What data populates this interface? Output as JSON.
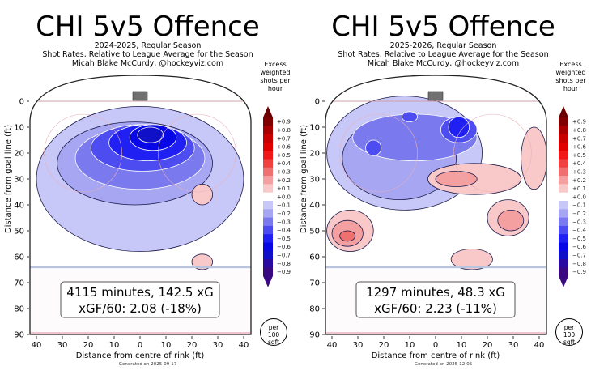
{
  "chart_data": [
    {
      "type": "heatmap",
      "title": "CHI 5v5 Offence",
      "subtitle_lines": [
        "2024-2025, Regular Season",
        "Shot Rates, Relative to League Average for the Season",
        "Micah Blake McCurdy, @hockeyviz.com"
      ],
      "xlabel": "Distance from centre of rink (ft)",
      "ylabel": "Distance from goal line (ft)",
      "x_ticks": [
        "40",
        "30",
        "20",
        "10",
        "0",
        "10",
        "20",
        "30",
        "40"
      ],
      "y_ticks": [
        "0",
        "10",
        "20",
        "30",
        "40",
        "50",
        "60",
        "70",
        "80",
        "90"
      ],
      "xlim": [
        -42,
        42
      ],
      "ylim": [
        90,
        -10
      ],
      "colorbar": {
        "title": "Excess weighted shots per hour",
        "ticks": [
          "+0.9",
          "+0.8",
          "+0.7",
          "+0.6",
          "+0.5",
          "+0.4",
          "+0.3",
          "+0.2",
          "+0.1",
          "+0.0",
          "−0.1",
          "−0.2",
          "−0.3",
          "−0.4",
          "−0.5",
          "−0.6",
          "−0.7",
          "−0.8",
          "−0.9"
        ],
        "unit_badge": [
          "per",
          "100",
          "sqft"
        ]
      },
      "summary_lines": [
        "4115 minutes, 142.5 xG",
        "xGF/60: 2.08 (-18%)"
      ],
      "footer": "Generated on 2025-09-17",
      "contour_regions": [
        {
          "level": -0.1,
          "cx": 0,
          "cy": 30,
          "rx": 40,
          "ry": 28
        },
        {
          "level": -0.2,
          "cx": -2,
          "cy": 24,
          "rx": 30,
          "ry": 16
        },
        {
          "level": -0.3,
          "cx": 0,
          "cy": 22,
          "rx": 25,
          "ry": 12
        },
        {
          "level": -0.4,
          "cx": 1,
          "cy": 18,
          "rx": 20,
          "ry": 9
        },
        {
          "level": -0.5,
          "cx": 3,
          "cy": 16,
          "rx": 15,
          "ry": 7
        },
        {
          "level": -0.6,
          "cx": 5,
          "cy": 14,
          "rx": 9,
          "ry": 5
        },
        {
          "level": -0.7,
          "cx": 4,
          "cy": 13,
          "rx": 5,
          "ry": 3
        },
        {
          "level": 0.1,
          "cx": 24,
          "cy": 36,
          "rx": 4,
          "ry": 4
        },
        {
          "level": 0.1,
          "cx": 24,
          "cy": 62,
          "rx": 4,
          "ry": 3
        }
      ]
    },
    {
      "type": "heatmap",
      "title": "CHI 5v5 Offence",
      "subtitle_lines": [
        "2025-2026, Regular Season",
        "Shot Rates, Relative to League Average for the Season",
        "Micah Blake McCurdy, @hockeyviz.com"
      ],
      "xlabel": "Distance from centre of rink (ft)",
      "ylabel": "Distance from goal line (ft)",
      "x_ticks": [
        "40",
        "30",
        "20",
        "10",
        "0",
        "10",
        "20",
        "30",
        "40"
      ],
      "y_ticks": [
        "0",
        "10",
        "20",
        "30",
        "40",
        "50",
        "60",
        "70",
        "80",
        "90"
      ],
      "xlim": [
        -42,
        42
      ],
      "ylim": [
        90,
        -10
      ],
      "colorbar": {
        "title": "Excess weighted shots per hour",
        "ticks": [
          "+0.9",
          "+0.8",
          "+0.7",
          "+0.6",
          "+0.5",
          "+0.4",
          "+0.3",
          "+0.2",
          "+0.1",
          "+0.0",
          "−0.1",
          "−0.2",
          "−0.3",
          "−0.4",
          "−0.5",
          "−0.6",
          "−0.7",
          "−0.8",
          "−0.9"
        ],
        "unit_badge": [
          "per",
          "100",
          "sqft"
        ]
      },
      "summary_lines": [
        "1297 minutes, 48.3 xG",
        "xGF/60: 2.23 (-11%)"
      ],
      "footer": "Generated on 2025-12-05",
      "contour_regions": [
        {
          "level": -0.1,
          "cx": -12,
          "cy": 20,
          "rx": 30,
          "ry": 22
        },
        {
          "level": -0.2,
          "cx": -14,
          "cy": 22,
          "rx": 22,
          "ry": 16
        },
        {
          "level": -0.3,
          "cx": -8,
          "cy": 14,
          "rx": 24,
          "ry": 9
        },
        {
          "level": -0.4,
          "cx": 9,
          "cy": 11,
          "rx": 7,
          "ry": 5
        },
        {
          "level": -0.5,
          "cx": 9,
          "cy": 10,
          "rx": 4,
          "ry": 4
        },
        {
          "level": -0.4,
          "cx": -24,
          "cy": 18,
          "rx": 3,
          "ry": 3
        },
        {
          "level": -0.4,
          "cx": -10,
          "cy": 6,
          "rx": 3,
          "ry": 2
        },
        {
          "level": 0.1,
          "cx": 15,
          "cy": 30,
          "rx": 18,
          "ry": 6
        },
        {
          "level": 0.2,
          "cx": 8,
          "cy": 30,
          "rx": 8,
          "ry": 3
        },
        {
          "level": 0.1,
          "cx": -33,
          "cy": 50,
          "rx": 9,
          "ry": 8
        },
        {
          "level": 0.2,
          "cx": -34,
          "cy": 51,
          "rx": 6,
          "ry": 5
        },
        {
          "level": 0.3,
          "cx": -34,
          "cy": 52,
          "rx": 3,
          "ry": 2
        },
        {
          "level": 0.1,
          "cx": 28,
          "cy": 45,
          "rx": 8,
          "ry": 7
        },
        {
          "level": 0.2,
          "cx": 29,
          "cy": 46,
          "rx": 5,
          "ry": 4
        },
        {
          "level": 0.1,
          "cx": 14,
          "cy": 61,
          "rx": 8,
          "ry": 4
        },
        {
          "level": 0.1,
          "cx": 38,
          "cy": 22,
          "rx": 5,
          "ry": 12
        }
      ]
    }
  ]
}
